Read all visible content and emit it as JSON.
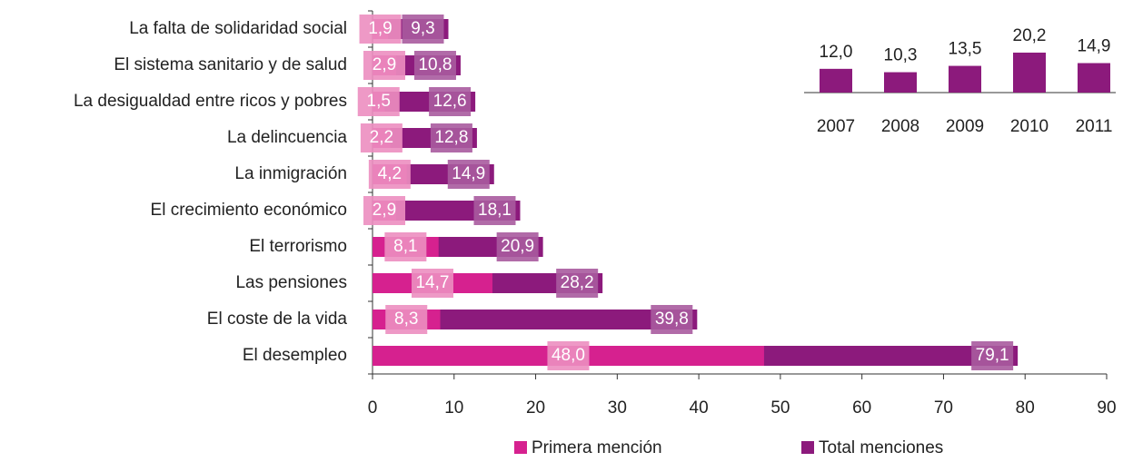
{
  "chart_data": [
    {
      "type": "hbar_overlap",
      "categories": [
        "La falta de solidaridad social",
        "El sistema sanitario y de salud",
        "La desigualdad entre ricos y pobres",
        "La delincuencia",
        "La inmigración",
        "El crecimiento económico",
        "El terrorismo",
        "Las pensiones",
        "El coste de la vida",
        "El desempleo"
      ],
      "series": [
        {
          "name": "Primera mención",
          "color": "#d6218f",
          "label_color": "#ec8ec0",
          "values": [
            1.9,
            2.9,
            1.5,
            2.2,
            4.2,
            2.9,
            8.1,
            14.7,
            8.3,
            48.0
          ],
          "value_labels": [
            "1,9",
            "2,9",
            "1,5",
            "2,2",
            "4,2",
            "2,9",
            "8,1",
            "14,7",
            "8,3",
            "48,0"
          ]
        },
        {
          "name": "Total menciones",
          "color": "#8c1a7c",
          "label_color": "#a95b9e",
          "values": [
            9.3,
            10.8,
            12.6,
            12.8,
            14.9,
            18.1,
            20.9,
            28.2,
            39.8,
            79.1
          ],
          "value_labels": [
            "9,3",
            "10,8",
            "12,6",
            "12,8",
            "14,9",
            "18,1",
            "20,9",
            "28,2",
            "39,8",
            "79,1"
          ]
        }
      ],
      "xlim": [
        0,
        90
      ],
      "xticks": [
        0,
        10,
        20,
        30,
        40,
        50,
        60,
        70,
        80,
        90
      ],
      "grid": false
    },
    {
      "type": "bar",
      "categories": [
        "2007",
        "2008",
        "2009",
        "2010",
        "2011"
      ],
      "values": [
        12.0,
        10.3,
        13.5,
        20.2,
        14.9
      ],
      "value_labels": [
        "12,0",
        "10,3",
        "13,5",
        "20,2",
        "14,9"
      ],
      "color": "#8c1a7c"
    }
  ]
}
